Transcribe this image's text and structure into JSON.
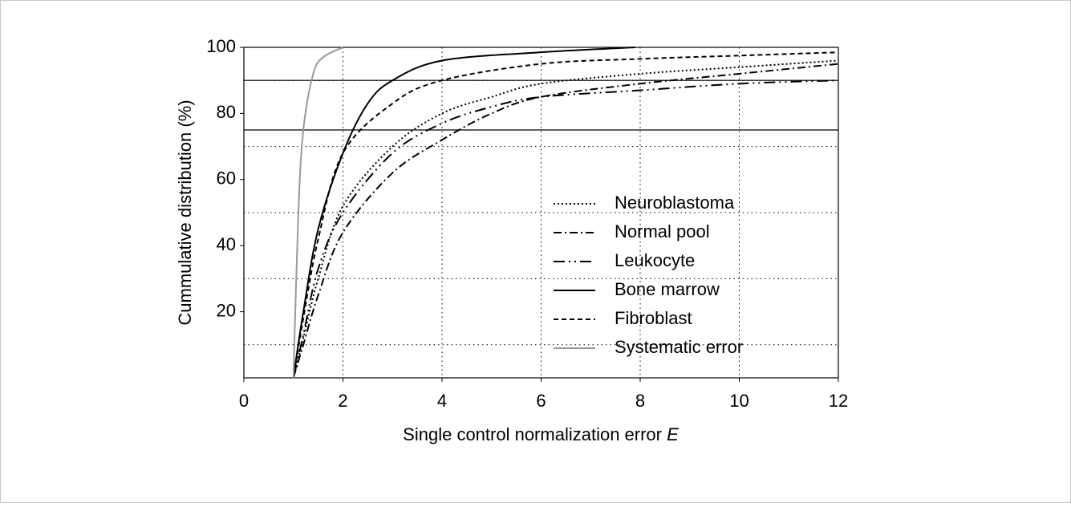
{
  "chart_data": {
    "type": "line",
    "xlabel": "Single control normalization error",
    "xlabel_symbol": "E",
    "ylabel": "Cummulative distribution (%)",
    "xlim": [
      0,
      12
    ],
    "xticks": [
      0,
      2,
      4,
      6,
      8,
      10,
      12
    ],
    "ylim": [
      0,
      100
    ],
    "yticks": [
      20,
      40,
      60,
      80,
      100
    ],
    "xgrid": [
      2,
      4,
      6,
      8,
      10
    ],
    "ygrid": [
      10,
      30,
      50,
      70,
      90
    ],
    "hlines": [
      90,
      75
    ],
    "legend": "center right",
    "series": [
      {
        "name": "Neuroblastoma",
        "color": "#000000",
        "style": "dotted",
        "x": [
          1,
          1.2,
          1.5,
          2,
          3,
          4,
          5,
          6,
          8,
          10,
          12
        ],
        "values": [
          0,
          12,
          30,
          52,
          70,
          80,
          85,
          89,
          92,
          94,
          96
        ]
      },
      {
        "name": "Normal pool",
        "color": "#000000",
        "style": "dashdot",
        "x": [
          1,
          1.2,
          1.5,
          2,
          3,
          4,
          5,
          6,
          8,
          10,
          12
        ],
        "values": [
          0,
          10,
          25,
          44,
          62,
          72,
          80,
          85,
          89,
          92,
          95
        ]
      },
      {
        "name": "Leukocyte",
        "color": "#000000",
        "style": "dashdotdot",
        "x": [
          1,
          1.2,
          1.5,
          2,
          3,
          4,
          5,
          6,
          8,
          10,
          12
        ],
        "values": [
          0,
          13,
          33,
          50,
          68,
          77,
          82,
          85,
          87,
          89,
          90
        ]
      },
      {
        "name": "Bone marrow",
        "color": "#000000",
        "style": "solid",
        "x": [
          1,
          1.2,
          1.5,
          2,
          2.5,
          3,
          4,
          6,
          7.9
        ],
        "values": [
          0,
          20,
          45,
          68,
          83,
          90,
          96,
          98.5,
          100
        ]
      },
      {
        "name": "Fibroblast",
        "color": "#000000",
        "style": "dashed",
        "x": [
          1,
          1.2,
          1.5,
          2,
          3,
          4,
          6,
          8,
          10,
          12
        ],
        "values": [
          0,
          18,
          42,
          68,
          83,
          90,
          95,
          96.5,
          97.5,
          98.5
        ]
      },
      {
        "name": "Systematic error",
        "color": "#999999",
        "style": "solid",
        "x": [
          1,
          1.1,
          1.2,
          1.4,
          1.6,
          2
        ],
        "values": [
          0,
          50,
          75,
          92,
          97,
          100
        ]
      }
    ]
  }
}
